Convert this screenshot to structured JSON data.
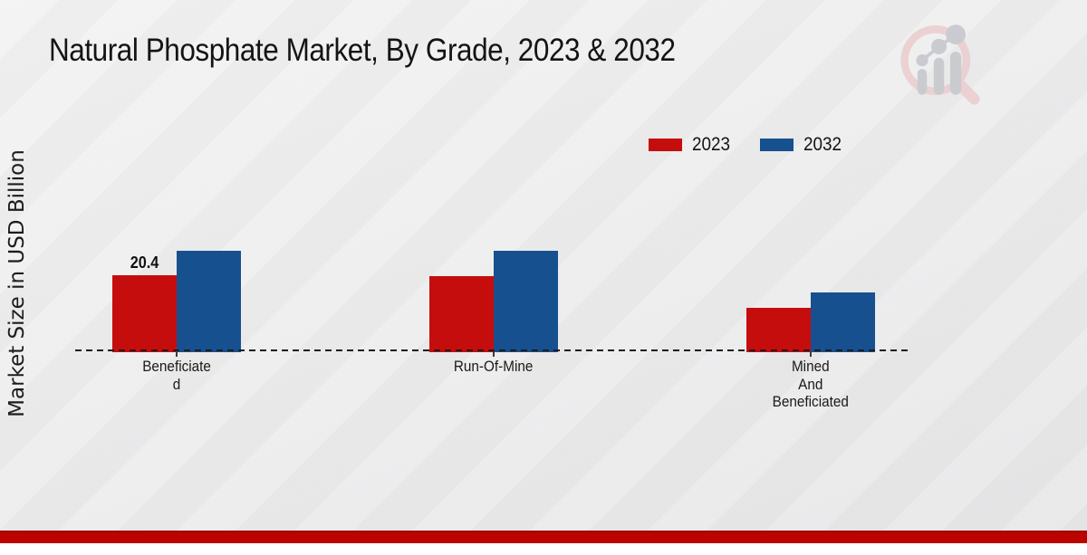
{
  "page": {
    "footer_bar_color": "#bb0300",
    "background_color": "#ededee",
    "logo": {
      "icon": "magnifier-bar-chart-logo",
      "ring_color": "#eccdd0",
      "bars_color": "#c6c7cc"
    }
  },
  "chart_data": {
    "type": "bar",
    "title": "Natural Phosphate Market, By Grade, 2023 & 2032",
    "xlabel": "",
    "ylabel": "Market Size in USD Billion",
    "categories": [
      "Beneficiate\nd",
      "Run-Of-Mine",
      "Mined\nAnd\nBeneficiated"
    ],
    "series": [
      {
        "name": "2023",
        "color": "#c60d0e",
        "values": [
          20.4,
          20.2,
          11.8
        ]
      },
      {
        "name": "2032",
        "color": "#17508e",
        "values": [
          26.9,
          26.9,
          15.8
        ]
      }
    ],
    "value_labels": [
      {
        "series_index": 0,
        "category_index": 0,
        "text": "20.4"
      }
    ],
    "ylim": [
      0,
      30
    ],
    "gridlines": false,
    "baseline_style": "dashed",
    "legend_position": "top-right"
  }
}
